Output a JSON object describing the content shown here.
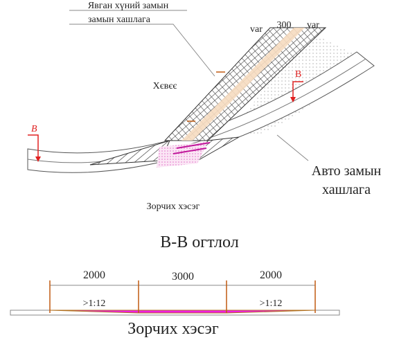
{
  "plan": {
    "footpath_label": [
      "Явган хүний замын",
      "замын хашлага"
    ],
    "widths": [
      "var",
      "300",
      "var"
    ],
    "shoulder": "Хєвєє",
    "section_marks": [
      "B",
      "B"
    ],
    "road_barrier_label": [
      "Авто замын",
      "хашлага"
    ],
    "carriageway": "Зорчих хэсэг"
  },
  "section": {
    "title": "В-В огтлол",
    "dimensions": [
      "2000",
      "3000",
      "2000"
    ],
    "slopes": [
      ">1:12",
      ">1:12"
    ],
    "carriageway": "Зорчих хэсэг"
  }
}
